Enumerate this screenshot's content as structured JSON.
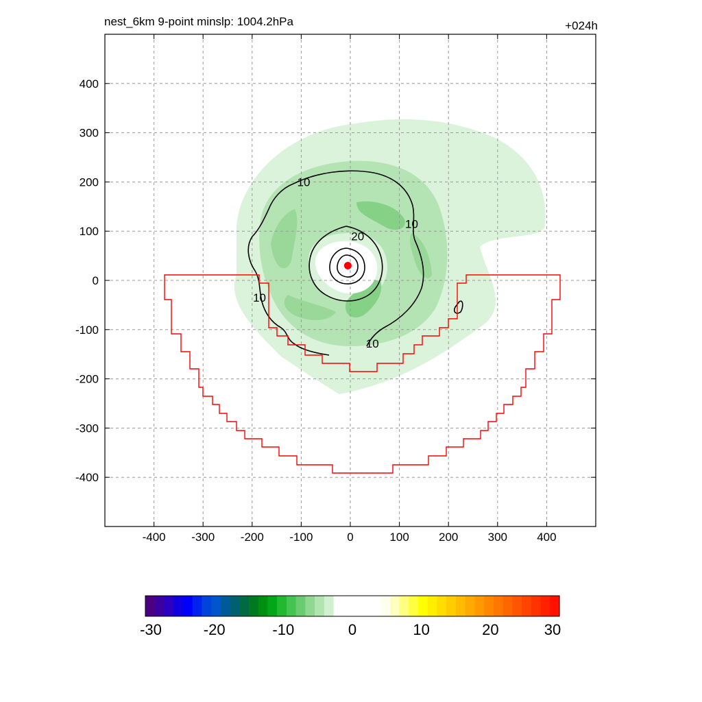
{
  "header": {
    "title": "nest_6km  9-point minslp: 1004.2hPa",
    "time_label": "+024h"
  },
  "chart_data": {
    "type": "contour-map",
    "xlim": [
      -500,
      500
    ],
    "ylim": [
      -500,
      500
    ],
    "xticks": [
      -400,
      -300,
      -200,
      -100,
      0,
      100,
      200,
      300,
      400
    ],
    "yticks": [
      -400,
      -300,
      -200,
      -100,
      0,
      100,
      200,
      300,
      400
    ],
    "grid": true,
    "center_marker": {
      "x": -5,
      "y": 30,
      "color": "#ff0000"
    },
    "contour_labels": [
      {
        "text": "10",
        "x": -95,
        "y": 200
      },
      {
        "text": "10",
        "x": 125,
        "y": 115
      },
      {
        "text": "10",
        "x": -185,
        "y": -35
      },
      {
        "text": "10",
        "x": 45,
        "y": -128
      },
      {
        "text": "20",
        "x": 15,
        "y": 90
      }
    ],
    "colorbar": {
      "min": -30,
      "max": 30,
      "ticks": [
        "-30",
        "-20",
        "-10",
        "0",
        "10",
        "20",
        "30"
      ],
      "colors": [
        "#4b0082",
        "#3d00a0",
        "#2a00c0",
        "#1000e0",
        "#0000ff",
        "#0022ee",
        "#0044dd",
        "#0055cc",
        "#005a9a",
        "#006070",
        "#006a40",
        "#007a20",
        "#009010",
        "#00a818",
        "#22b830",
        "#44c450",
        "#6acc70",
        "#90d890",
        "#b0e4b0",
        "#d0f0d0",
        "#ffffff",
        "#ffffff",
        "#ffffff",
        "#ffffff",
        "#ffffff",
        "#fffff0",
        "#ffffc0",
        "#ffff80",
        "#ffff40",
        "#ffff00",
        "#ffee00",
        "#ffdd00",
        "#ffcc00",
        "#ffbb00",
        "#ffaa00",
        "#ff9900",
        "#ff8800",
        "#ff7700",
        "#ff6600",
        "#ff5500",
        "#ff4400",
        "#ff3300",
        "#ff2200",
        "#ff1100"
      ]
    },
    "accent_colors": {
      "boundary": "#ff0000",
      "contour": "#000000",
      "field_light": "#d8f2d8",
      "field_mid": "#aee0ae",
      "field_dark": "#7ccf7c"
    }
  }
}
